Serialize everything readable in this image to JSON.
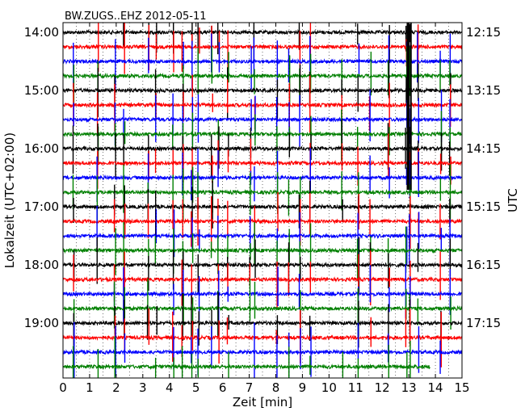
{
  "chart_data": {
    "type": "line",
    "subtype": "dayplot",
    "title": "BW.ZUGS..EHZ 2012-05-11",
    "xlabel": "Zeit  [min]",
    "ylabel_left": "Lokalzeit (UTC+02:00)",
    "ylabel_right": "UTC",
    "xlim": [
      0,
      15
    ],
    "x_ticks": [
      "0",
      "1",
      "2",
      "3",
      "4",
      "5",
      "6",
      "7",
      "8",
      "9",
      "10",
      "11",
      "12",
      "13",
      "14",
      "15"
    ],
    "rows_per_hour": 4,
    "row_minutes": 15,
    "row_count": 24,
    "y_ticks_left": [
      "14:00",
      "15:00",
      "16:00",
      "17:00",
      "18:00",
      "19:00"
    ],
    "y_ticks_right": [
      "12:15",
      "13:15",
      "14:15",
      "15:15",
      "16:15",
      "17:15"
    ],
    "color_cycle": [
      "#000000",
      "#ff0000",
      "#0000ff",
      "#008000"
    ],
    "grid": "dotted vertical per 0.5 min",
    "last_row_end_min": 13.8,
    "spike_columns_min": [
      0.4,
      1.3,
      1.95,
      2.3,
      3.2,
      3.5,
      4.15,
      4.5,
      4.85,
      5.1,
      5.6,
      5.85,
      6.2,
      7.05,
      7.2,
      8.05,
      8.5,
      8.9,
      9.3,
      10.5,
      11.1,
      11.55,
      12.25,
      12.9,
      13.05,
      13.35,
      14.2,
      14.55
    ]
  }
}
